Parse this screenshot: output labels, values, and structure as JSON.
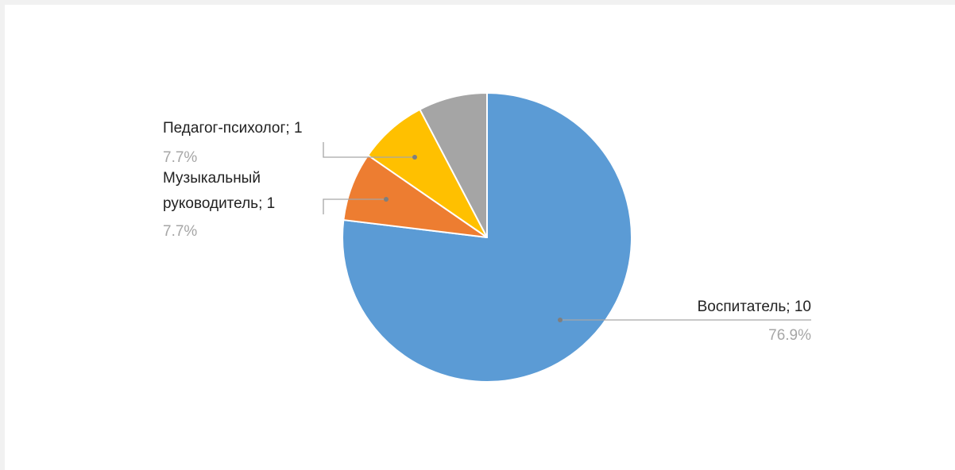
{
  "chart_data": {
    "type": "pie",
    "slices": [
      {
        "label": "Воспитатель",
        "value": 10,
        "percent": "76.9%",
        "color": "#5b9bd5"
      },
      {
        "label": "Музыкальный руководитель",
        "value": 1,
        "percent": "7.7%",
        "color": "#ed7d31"
      },
      {
        "label": "Педагог-психолог",
        "value": 1,
        "percent": "7.7%",
        "color": "#ffc000"
      },
      {
        "label": "",
        "value": 1,
        "percent": "",
        "color": "#a5a5a5"
      }
    ],
    "labels": {
      "vospitatel": {
        "line1": "Воспитатель; 10",
        "pct": "76.9%"
      },
      "muz": {
        "line1": "Музыкальный",
        "line2": "руководитель; 1",
        "pct": "7.7%"
      },
      "ped": {
        "line1": "Педагог-психолог; 1",
        "pct": "7.7%"
      }
    },
    "leader_color": "#a6a6a6",
    "legend": "none"
  }
}
